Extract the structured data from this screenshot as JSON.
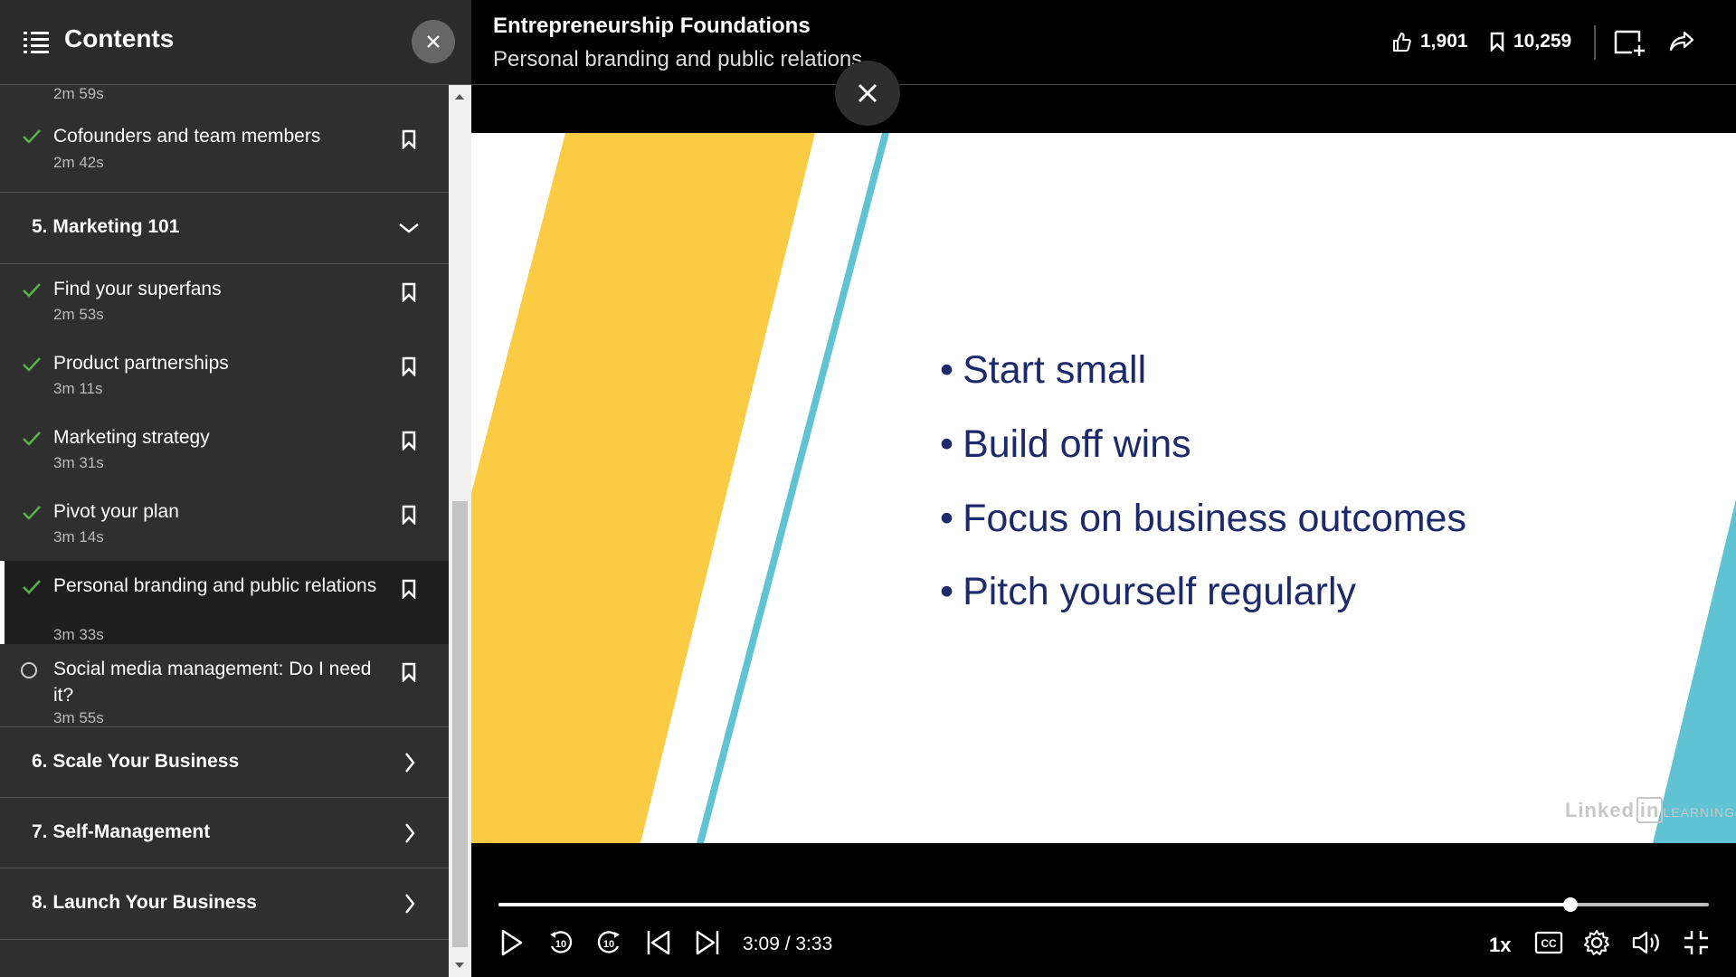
{
  "sidebar": {
    "title": "Contents",
    "lessons_top": [
      {
        "duration": "2m 59s"
      },
      {
        "title": "Cofounders and team members",
        "duration": "2m 42s",
        "status": "completed"
      }
    ],
    "sections": [
      {
        "label": "5. Marketing 101",
        "expanded": true
      },
      {
        "label": "6. Scale Your Business",
        "expanded": false
      },
      {
        "label": "7. Self-Management",
        "expanded": false
      },
      {
        "label": "8. Launch Your Business",
        "expanded": false
      }
    ],
    "lessons": [
      {
        "title": "Find your superfans",
        "duration": "2m 53s",
        "status": "completed"
      },
      {
        "title": "Product partnerships",
        "duration": "3m 11s",
        "status": "completed"
      },
      {
        "title": "Marketing strategy",
        "duration": "3m 31s",
        "status": "completed"
      },
      {
        "title": "Pivot your plan",
        "duration": "3m 14s",
        "status": "completed"
      },
      {
        "title": "Personal branding and public relations",
        "duration": "3m 33s",
        "status": "completed",
        "active": true
      },
      {
        "title": "Social media management: Do I need it?",
        "duration": "3m 55s",
        "status": "not-started"
      }
    ]
  },
  "header": {
    "course_title": "Entrepreneurship Foundations",
    "video_title": "Personal branding and public relations",
    "likes": "1,901",
    "saves": "10,259"
  },
  "slide": {
    "bullets": [
      "Start small",
      "Build off wins",
      "Focus on business outcomes",
      "Pitch yourself regularly"
    ],
    "watermark_brand": "Linked",
    "watermark_in": "in",
    "watermark_suffix": "LEARNING"
  },
  "player": {
    "time": "3:09 / 3:33",
    "progress": 0.886,
    "speed": "1x"
  },
  "colors": {
    "check": "#57b547",
    "slide_yellow": "#fccb44",
    "slide_teal": "#5fc3d4",
    "slide_text": "#1c2a6b"
  }
}
